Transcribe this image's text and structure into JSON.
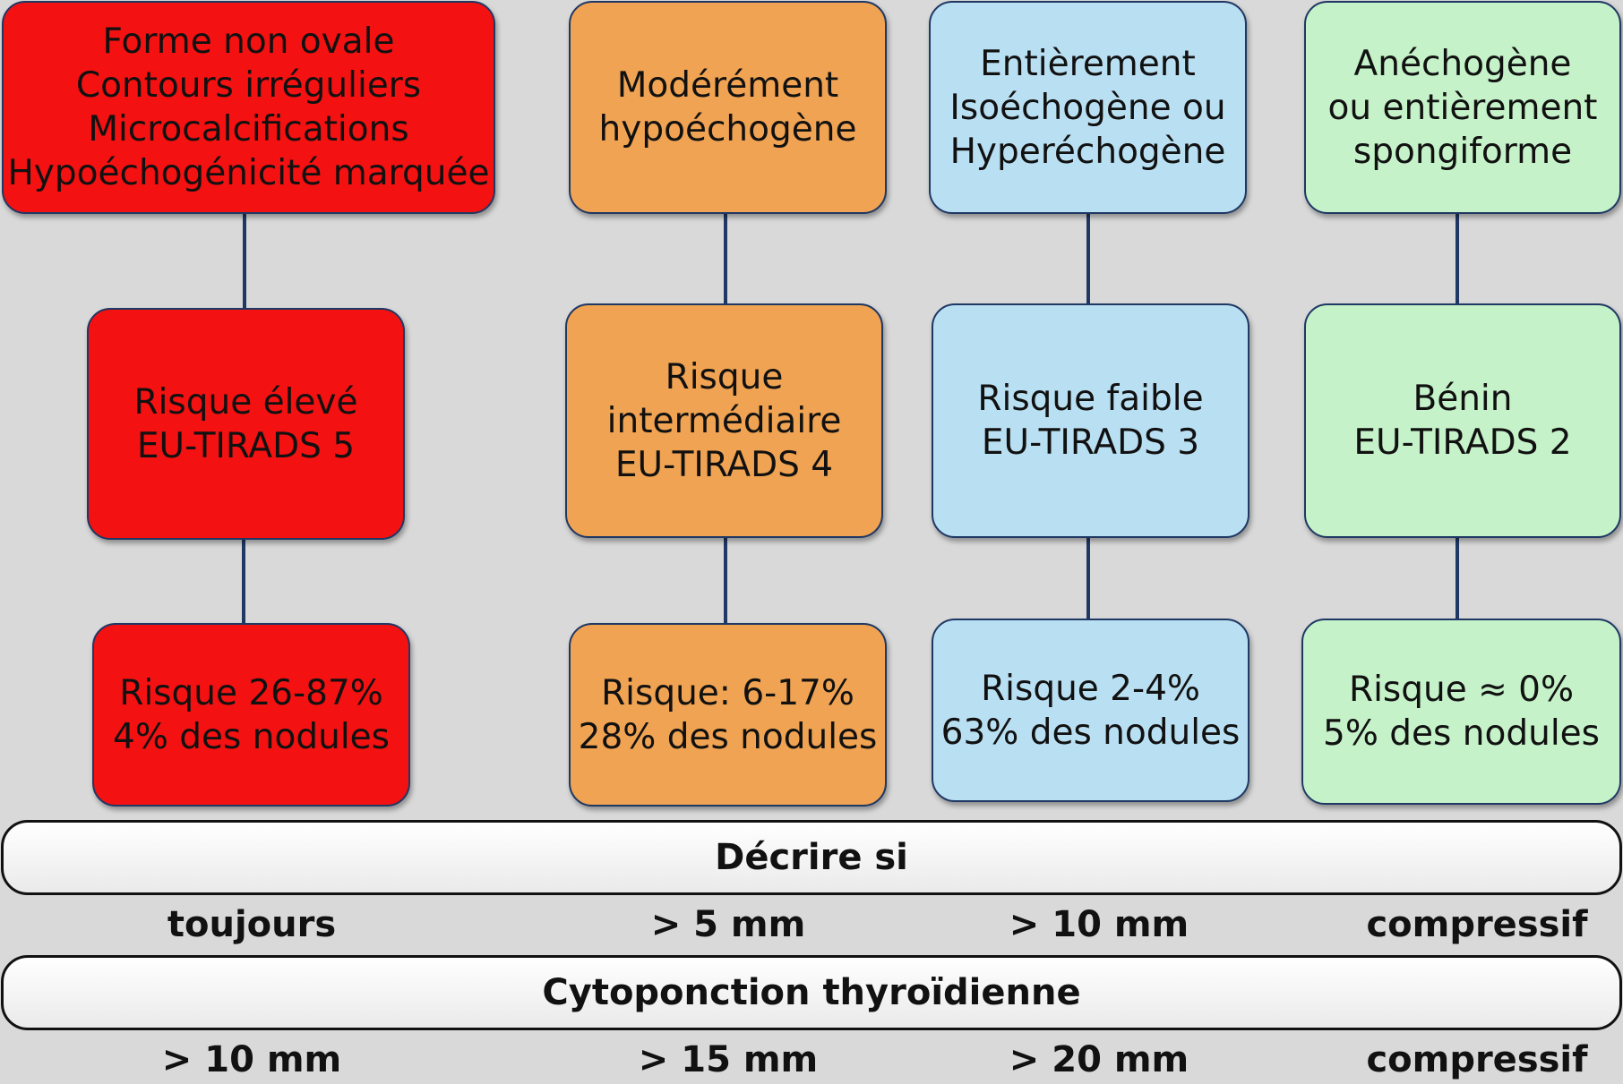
{
  "colors": {
    "red": "#f41111",
    "orange": "#f0a352",
    "blue": "#b9dff2",
    "green": "#c5f2c8",
    "border": "#1f3864",
    "background": "#d9d9d9"
  },
  "columns": [
    {
      "color": "red",
      "criteria": "Forme non ovale\nContours irréguliers\nMicrocalcifications\nHypoéchogénicité marquée",
      "risk_level": "Risque élevé\nEU-TIRADS 5",
      "stats": "Risque 26-87%\n4% des nodules",
      "describe_if": "toujours",
      "fna_if": "> 10 mm"
    },
    {
      "color": "orange",
      "criteria": "Modérément\nhypoéchogène",
      "risk_level": "Risque\nintermédiaire\nEU-TIRADS 4",
      "stats": "Risque: 6-17%\n28% des nodules",
      "describe_if": "> 5 mm",
      "fna_if": "> 15 mm"
    },
    {
      "color": "blue",
      "criteria": "Entièrement\nIsoéchogène ou\nHyperéchogène",
      "risk_level": "Risque faible\nEU-TIRADS 3",
      "stats": "Risque 2-4%\n63% des nodules",
      "describe_if": "> 10 mm",
      "fna_if": "> 20 mm"
    },
    {
      "color": "green",
      "criteria": "Anéchogène\nou entièrement\nspongiforme",
      "risk_level": "Bénin\nEU-TIRADS 2",
      "stats": "Risque ≈ 0%\n5% des nodules",
      "describe_if": "compressif",
      "fna_if": "compressif"
    }
  ],
  "bars": {
    "describe": "Décrire si",
    "fna": "Cytoponction thyroïdienne"
  }
}
